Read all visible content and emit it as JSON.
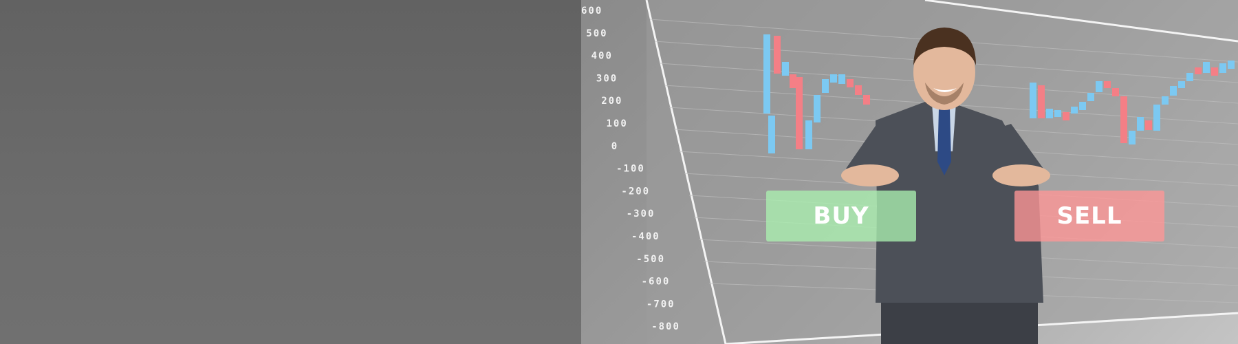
{
  "scene": {
    "buttons": {
      "buy": "BUY",
      "sell": "SELL"
    },
    "axis_labels": [
      "600",
      "500",
      "400",
      "300",
      "200",
      "100",
      "0",
      "-100",
      "-200",
      "-300",
      "-400",
      "-500",
      "-600",
      "-700",
      "-800"
    ],
    "colors": {
      "bull": "#7cc9f2",
      "bear": "#f47f86",
      "buy": "#a8f0ae",
      "sell": "#ff9a9a"
    }
  }
}
